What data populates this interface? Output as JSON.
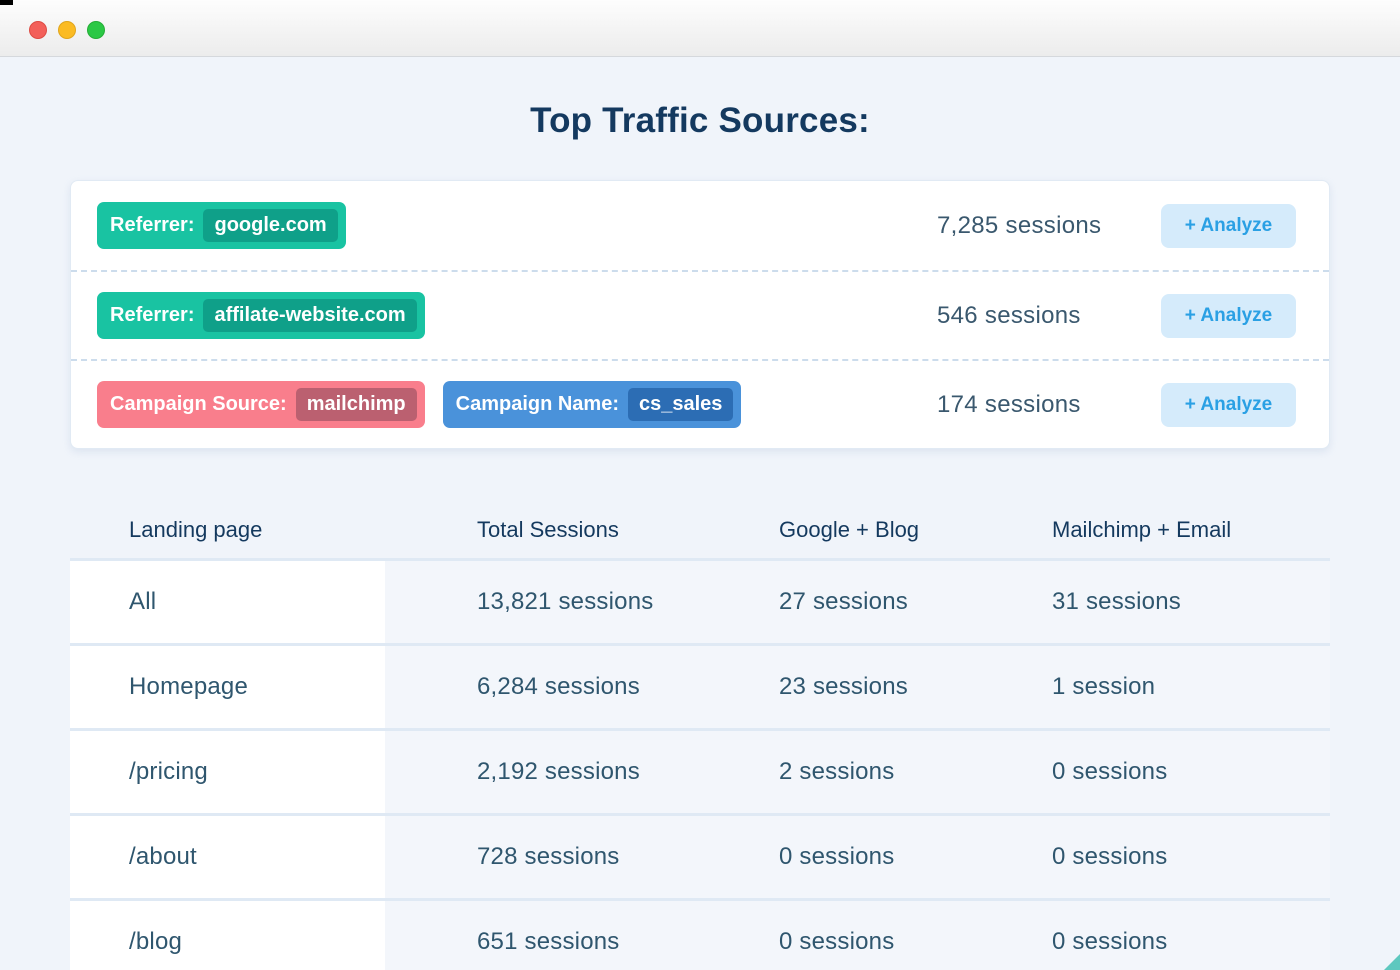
{
  "page": {
    "title": "Top Traffic Sources:"
  },
  "colors": {
    "traffic_red": "#f3605a",
    "traffic_yellow": "#fbbb23",
    "traffic_green": "#2bc845",
    "teal_badge": "#19c3a2",
    "teal_badge_dark": "#0fa089",
    "red_badge": "#f97e8c",
    "red_badge_dark": "#bb6070",
    "blue_badge": "#4a92da",
    "blue_badge_dark": "#2c6db4",
    "analyze_button_bg": "#d5ebfb",
    "analyze_button_text": "#2aa0e4"
  },
  "sources": {
    "rows": [
      {
        "badges": [
          {
            "label": "Referrer:",
            "value": "google.com"
          }
        ],
        "sessions": "7,285 sessions",
        "analyze_label": "+ Analyze"
      },
      {
        "badges": [
          {
            "label": "Referrer:",
            "value": "affilate-website.com"
          }
        ],
        "sessions": "546 sessions",
        "analyze_label": "+ Analyze"
      },
      {
        "badges": [
          {
            "label": "Campaign Source:",
            "value": "mailchimp"
          },
          {
            "label": "Campaign Name:",
            "value": "cs_sales"
          }
        ],
        "sessions": "174 sessions",
        "analyze_label": "+ Analyze"
      }
    ]
  },
  "table": {
    "headers": [
      "Landing page",
      "Total Sessions",
      "Google + Blog",
      "Mailchimp + Email"
    ],
    "rows": [
      {
        "landing_page": "All",
        "total": "13,821 sessions",
        "google_blog": "27 sessions",
        "mailchimp_email": "31 sessions"
      },
      {
        "landing_page": "Homepage",
        "total": "6,284 sessions",
        "google_blog": "23 sessions",
        "mailchimp_email": "1 session"
      },
      {
        "landing_page": "/pricing",
        "total": "2,192 sessions",
        "google_blog": "2 sessions",
        "mailchimp_email": "0 sessions"
      },
      {
        "landing_page": "/about",
        "total": "728 sessions",
        "google_blog": "0 sessions",
        "mailchimp_email": "0 sessions"
      },
      {
        "landing_page": "/blog",
        "total": "651 sessions",
        "google_blog": "0 sessions",
        "mailchimp_email": "0 sessions"
      }
    ]
  }
}
